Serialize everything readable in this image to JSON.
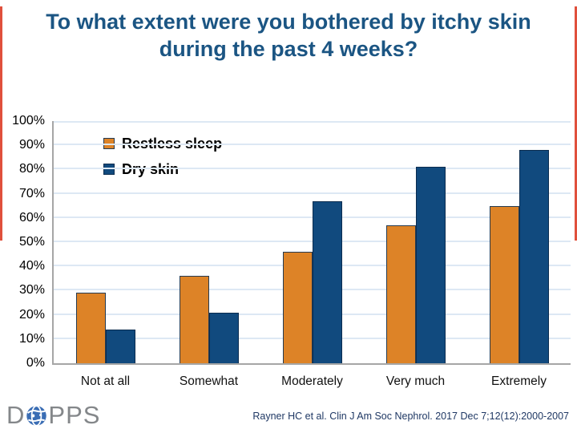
{
  "slide": {
    "title_lines": [
      "To what extent were you bothered by itchy skin",
      "during the past 4 weeks?"
    ]
  },
  "chart_data": {
    "type": "bar",
    "title": "To what extent were you bothered by itchy skin during the past 4 weeks?",
    "categories": [
      "Not at all",
      "Somewhat",
      "Moderately",
      "Very much",
      "Extremely"
    ],
    "series": [
      {
        "name": "Restless sleep",
        "values": [
          29,
          36,
          46,
          57,
          65
        ],
        "fill": "#dd8327",
        "border": "#243b52"
      },
      {
        "name": "Dry skin",
        "values": [
          14,
          21,
          67,
          81,
          88
        ],
        "fill": "#114a7e",
        "border": "#0b2c4f"
      }
    ],
    "xlabel": "",
    "ylabel": "",
    "ylim": [
      0,
      100
    ],
    "yticks": [
      0,
      10,
      20,
      30,
      40,
      50,
      60,
      70,
      80,
      90,
      100
    ],
    "ytick_suffix": "%",
    "grid": true,
    "legend_position": "top-left-inside"
  },
  "footer": {
    "logo": {
      "prefix": "D",
      "suffix": "PPS"
    },
    "citation": "Rayner HC et al. Clin J Am Soc Nephrol. 2017 Dec 7;12(12):2000-2007"
  },
  "colors": {
    "title": "#1b5583",
    "accent_red": "#e0503c",
    "axis": "#a6a6a6",
    "gridline": "#dde8f4",
    "restless_sleep": "#dd8327",
    "dry_skin": "#114a7e",
    "citation": "#1f3864",
    "logo_gray": "#84878a"
  }
}
